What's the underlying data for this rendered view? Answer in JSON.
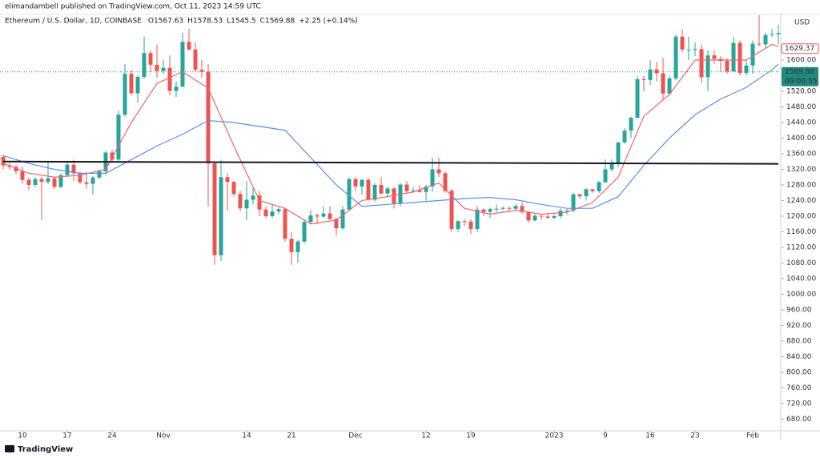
{
  "publisher_note": "elimandambell published on TradingView.com, Oct 11, 2023 14:59 UTC",
  "footer": "TradingView",
  "chart_data": {
    "type": "candlestick",
    "symbol": "Ethereum / U.S. Dollar, 1D, COINBASE",
    "ohlc": [
      {
        "label": "O",
        "value": 1567.63
      },
      {
        "label": "H",
        "value": 1578.53
      },
      {
        "label": "L",
        "value": 1545.5
      },
      {
        "label": "C",
        "value": 1569.88
      }
    ],
    "change": "+2.25 (+0.14%)",
    "currency": "USD",
    "up_color": "#26a69a",
    "down_color": "#ef5350",
    "open": [
      1352,
      1330,
      1326,
      1315,
      1293,
      1280,
      1295,
      1288,
      1297,
      1275,
      1305,
      1332,
      1310,
      1287,
      1283,
      1299,
      1315,
      1363,
      1345,
      1460,
      1565,
      1515,
      1557,
      1618,
      1588,
      1572,
      1580,
      1521,
      1532,
      1647,
      1627,
      1575,
      1570,
      1335,
      1100,
      1300,
      1288,
      1257,
      1220,
      1242,
      1253,
      1217,
      1200,
      1212,
      1218,
      1142,
      1108,
      1135,
      1185,
      1202,
      1199,
      1207,
      1193,
      1169,
      1217,
      1295,
      1276,
      1293,
      1242,
      1280,
      1258,
      1271,
      1232,
      1281,
      1264,
      1266,
      1262,
      1276,
      1320,
      1310,
      1265,
      1167,
      1187,
      1186,
      1167,
      1217,
      1211,
      1218,
      1219,
      1221,
      1219,
      1226,
      1211,
      1189,
      1201,
      1199,
      1196,
      1200,
      1214,
      1214,
      1256,
      1251,
      1269,
      1264,
      1287,
      1320,
      1336,
      1389,
      1419,
      1452,
      1551,
      1549,
      1576,
      1566,
      1514,
      1553,
      1660,
      1627,
      1627,
      1628,
      1556,
      1612,
      1603,
      1598,
      1571,
      1644,
      1567,
      1586,
      1642,
      1640,
      1664,
      1666
    ],
    "high": [
      1358,
      1337,
      1332,
      1328,
      1300,
      1300,
      1300,
      1340,
      1300,
      1310,
      1338,
      1345,
      1314,
      1312,
      1303,
      1320,
      1368,
      1370,
      1470,
      1590,
      1575,
      1560,
      1660,
      1625,
      1640,
      1600,
      1612,
      1545,
      1670,
      1680,
      1645,
      1600,
      1590,
      1340,
      1345,
      1310,
      1290,
      1265,
      1290,
      1272,
      1265,
      1225,
      1230,
      1222,
      1220,
      1160,
      1140,
      1190,
      1215,
      1207,
      1225,
      1225,
      1196,
      1225,
      1300,
      1300,
      1295,
      1298,
      1285,
      1300,
      1275,
      1273,
      1285,
      1290,
      1275,
      1280,
      1280,
      1350,
      1350,
      1315,
      1270,
      1190,
      1192,
      1192,
      1225,
      1220,
      1222,
      1230,
      1225,
      1225,
      1230,
      1235,
      1213,
      1205,
      1202,
      1205,
      1205,
      1220,
      1218,
      1260,
      1258,
      1272,
      1270,
      1290,
      1345,
      1345,
      1390,
      1425,
      1455,
      1560,
      1560,
      1600,
      1595,
      1605,
      1560,
      1665,
      1680,
      1660,
      1645,
      1640,
      1625,
      1625,
      1610,
      1605,
      1660,
      1650,
      1600,
      1650,
      1715,
      1670,
      1680,
      1690
    ],
    "low": [
      1320,
      1318,
      1308,
      1283,
      1268,
      1275,
      1190,
      1282,
      1270,
      1272,
      1300,
      1290,
      1282,
      1270,
      1255,
      1295,
      1305,
      1340,
      1340,
      1455,
      1510,
      1490,
      1552,
      1570,
      1555,
      1565,
      1510,
      1505,
      1530,
      1625,
      1570,
      1555,
      1225,
      1075,
      1085,
      1215,
      1250,
      1212,
      1190,
      1230,
      1200,
      1195,
      1195,
      1205,
      1135,
      1075,
      1080,
      1130,
      1180,
      1180,
      1195,
      1190,
      1150,
      1165,
      1215,
      1265,
      1255,
      1240,
      1238,
      1255,
      1250,
      1220,
      1225,
      1260,
      1260,
      1260,
      1240,
      1262,
      1300,
      1260,
      1160,
      1160,
      1175,
      1155,
      1160,
      1200,
      1195,
      1210,
      1215,
      1210,
      1215,
      1205,
      1183,
      1187,
      1190,
      1193,
      1192,
      1195,
      1205,
      1210,
      1245,
      1240,
      1260,
      1260,
      1285,
      1315,
      1325,
      1385,
      1400,
      1450,
      1520,
      1535,
      1545,
      1500,
      1510,
      1548,
      1620,
      1600,
      1610,
      1540,
      1520,
      1590,
      1570,
      1565,
      1570,
      1560,
      1560,
      1565,
      1635,
      1630,
      1660,
      1640
    ],
    "close": [
      1330,
      1326,
      1315,
      1293,
      1280,
      1295,
      1288,
      1297,
      1275,
      1305,
      1332,
      1310,
      1287,
      1283,
      1299,
      1315,
      1363,
      1345,
      1460,
      1565,
      1515,
      1557,
      1618,
      1588,
      1572,
      1580,
      1521,
      1532,
      1647,
      1627,
      1575,
      1570,
      1335,
      1100,
      1300,
      1288,
      1257,
      1220,
      1242,
      1253,
      1217,
      1200,
      1212,
      1218,
      1142,
      1108,
      1135,
      1185,
      1202,
      1199,
      1207,
      1193,
      1169,
      1217,
      1295,
      1276,
      1293,
      1242,
      1280,
      1258,
      1271,
      1232,
      1281,
      1264,
      1266,
      1262,
      1276,
      1320,
      1310,
      1265,
      1167,
      1187,
      1186,
      1167,
      1217,
      1211,
      1218,
      1219,
      1221,
      1219,
      1226,
      1211,
      1189,
      1201,
      1199,
      1196,
      1200,
      1214,
      1214,
      1256,
      1251,
      1269,
      1264,
      1287,
      1320,
      1336,
      1389,
      1419,
      1452,
      1551,
      1549,
      1576,
      1566,
      1514,
      1553,
      1660,
      1627,
      1627,
      1628,
      1556,
      1612,
      1603,
      1598,
      1571,
      1644,
      1567,
      1586,
      1642,
      1640,
      1664,
      1666,
      1669
    ],
    "lines": [
      {
        "color": "#f0646c",
        "x": [
          0,
          4,
          8,
          12,
          16,
          20,
          24,
          28,
          32,
          36,
          40,
          44,
          48,
          52,
          56,
          60,
          64,
          68,
          72,
          76,
          80,
          84,
          88,
          92,
          96,
          100,
          104,
          108,
          112,
          116,
          120,
          121
        ],
        "values": [
          1335,
          1310,
          1300,
          1305,
          1320,
          1440,
          1540,
          1570,
          1528,
          1380,
          1240,
          1220,
          1180,
          1190,
          1240,
          1250,
          1262,
          1285,
          1220,
          1205,
          1215,
          1205,
          1210,
          1235,
          1300,
          1456,
          1512,
          1600,
          1600,
          1600,
          1640,
          1635
        ]
      },
      {
        "color": "#5b8def",
        "x": [
          0,
          4,
          8,
          12,
          16,
          20,
          24,
          28,
          32,
          36,
          40,
          44,
          48,
          52,
          56,
          60,
          64,
          68,
          72,
          76,
          80,
          84,
          88,
          92,
          96,
          100,
          104,
          108,
          112,
          116,
          120,
          121
        ],
        "values": [
          1355,
          1335,
          1320,
          1310,
          1310,
          1345,
          1380,
          1410,
          1445,
          1440,
          1430,
          1420,
          1350,
          1280,
          1225,
          1230,
          1235,
          1240,
          1245,
          1248,
          1242,
          1230,
          1220,
          1220,
          1250,
          1330,
          1400,
          1460,
          1500,
          1530,
          1575,
          1590
        ]
      }
    ],
    "trend_line": {
      "color": "#131722",
      "x": [
        0,
        121
      ],
      "values": [
        1340,
        1334
      ]
    },
    "price_labels": [
      {
        "value": 1629.37,
        "label": "1629.37",
        "color": "#ef5350"
      },
      {
        "value": 1569.88,
        "label": "1569.88",
        "timer": "09:00:55",
        "color": "#1e8a80"
      }
    ],
    "ylim": [
      650,
      1717
    ],
    "yticks": [
      {
        "value": 680,
        "label": "680.00"
      },
      {
        "value": 720,
        "label": "720.00"
      },
      {
        "value": 760,
        "label": "760.00"
      },
      {
        "value": 800,
        "label": "800.00"
      },
      {
        "value": 840,
        "label": "840.00"
      },
      {
        "value": 880,
        "label": "880.00"
      },
      {
        "value": 920,
        "label": "920.00"
      },
      {
        "value": 960,
        "label": "960.00"
      },
      {
        "value": 1000,
        "label": "1000.00"
      },
      {
        "value": 1040,
        "label": "1040.00"
      },
      {
        "value": 1080,
        "label": "1080.00"
      },
      {
        "value": 1120,
        "label": "1120.00"
      },
      {
        "value": 1160,
        "label": "1160.00"
      },
      {
        "value": 1200,
        "label": "1200.00"
      },
      {
        "value": 1240,
        "label": "1240.00"
      },
      {
        "value": 1280,
        "label": "1280.00"
      },
      {
        "value": 1320,
        "label": "1320.00"
      },
      {
        "value": 1360,
        "label": "1360.00"
      },
      {
        "value": 1400,
        "label": "1400.00"
      },
      {
        "value": 1440,
        "label": "1440.00"
      },
      {
        "value": 1480,
        "label": "1480.00"
      },
      {
        "value": 1520,
        "label": "1520.00"
      },
      {
        "value": 1560,
        "label": "1560.00"
      },
      {
        "value": 1600,
        "label": "1600.00"
      }
    ],
    "xticks": [
      {
        "value": 3,
        "label": "10"
      },
      {
        "value": 10,
        "label": "17"
      },
      {
        "value": 17,
        "label": "24"
      },
      {
        "value": 25,
        "label": "Nov"
      },
      {
        "value": 38,
        "label": "14"
      },
      {
        "value": 45,
        "label": "21"
      },
      {
        "value": 55,
        "label": "Dec"
      },
      {
        "value": 66,
        "label": "12"
      },
      {
        "value": 73,
        "label": "19"
      },
      {
        "value": 86,
        "label": "2023"
      },
      {
        "value": 94,
        "label": "9"
      },
      {
        "value": 101,
        "label": "16"
      },
      {
        "value": 108,
        "label": "23"
      },
      {
        "value": 117,
        "label": "Feb"
      }
    ]
  }
}
